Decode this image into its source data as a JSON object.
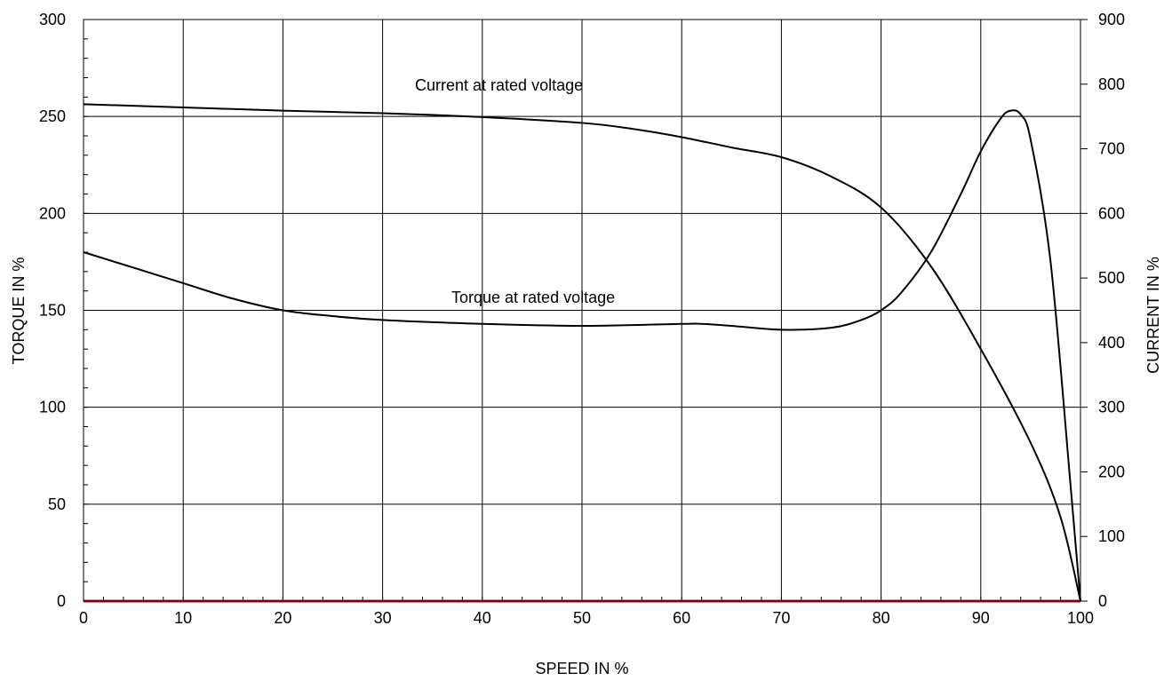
{
  "chart_data": {
    "type": "line",
    "title": "",
    "xlabel": "SPEED IN %",
    "ylabel_left": "TORQUE IN %",
    "ylabel_right": "CURRENT IN %",
    "xlim": [
      0,
      100
    ],
    "ylim_left": [
      0,
      300
    ],
    "ylim_right": [
      0,
      900
    ],
    "grid": true,
    "x_ticks": [
      "0",
      "10",
      "20",
      "30",
      "40",
      "50",
      "60",
      "70",
      "80",
      "90",
      "100"
    ],
    "y_left_ticks": [
      "0",
      "50",
      "100",
      "150",
      "200",
      "250",
      "300"
    ],
    "y_right_ticks": [
      "0",
      "100",
      "200",
      "300",
      "400",
      "500",
      "600",
      "700",
      "800",
      "900"
    ],
    "annotations": {
      "current": "Current at rated voltage",
      "torque": "Torque at rated voltage"
    },
    "series": [
      {
        "name": "Current at rated voltage",
        "axis": "right",
        "color": "#000000",
        "x": [
          0,
          10,
          20,
          30,
          40,
          50,
          55,
          60,
          65,
          70,
          75,
          80,
          85,
          90,
          95,
          98,
          100
        ],
        "y": [
          769,
          764,
          759,
          755,
          749,
          740,
          731,
          718,
          702,
          687,
          657,
          609,
          518,
          390,
          245,
          130,
          0
        ]
      },
      {
        "name": "Torque at rated voltage",
        "axis": "left",
        "color": "#000000",
        "x": [
          0,
          5,
          10,
          15,
          20,
          25,
          30,
          40,
          50,
          60,
          62,
          65,
          70,
          75,
          78,
          80,
          82,
          85,
          88,
          90,
          92,
          93,
          94,
          95,
          97,
          99,
          100
        ],
        "y": [
          180,
          172,
          164,
          156,
          150,
          147,
          145,
          143,
          142,
          143,
          143,
          142,
          140,
          141,
          145,
          150,
          159,
          180,
          210,
          232,
          249,
          253,
          251,
          238,
          175,
          60,
          0
        ]
      },
      {
        "name": "",
        "axis": "left",
        "color": "#c8102e",
        "x": [
          0,
          100
        ],
        "y": [
          0,
          0
        ]
      }
    ]
  }
}
